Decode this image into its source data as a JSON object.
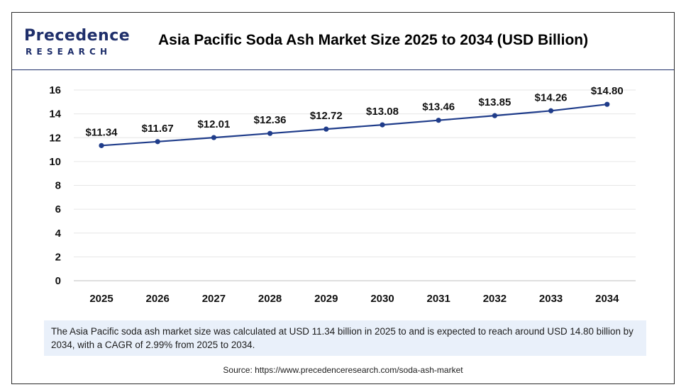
{
  "brand": {
    "name_top": "Precedence",
    "name_bottom": "RESEARCH"
  },
  "colors": {
    "line": "#1f3c8a",
    "brand": "#1f2f6b",
    "footnote_bg": "#e9f0fa"
  },
  "chart_data": {
    "type": "line",
    "title": "Asia Pacific Soda Ash Market Size 2025 to 2034 (USD Billion)",
    "xlabel": "",
    "ylabel": "",
    "categories": [
      "2025",
      "2026",
      "2027",
      "2028",
      "2029",
      "2030",
      "2031",
      "2032",
      "2033",
      "2034"
    ],
    "series": [
      {
        "values": [
          11.34,
          11.67,
          12.01,
          12.36,
          12.72,
          13.08,
          13.46,
          13.85,
          14.26,
          14.8
        ],
        "labels": [
          "$11.34",
          "$11.67",
          "$12.01",
          "$12.36",
          "$12.72",
          "$13.08",
          "$13.46",
          "$13.85",
          "$14.26",
          "$14.80"
        ]
      }
    ],
    "ylim": [
      0,
      16
    ],
    "yticks": [
      "0",
      "2",
      "4",
      "6",
      "8",
      "10",
      "12",
      "14",
      "16"
    ],
    "grid": true,
    "legend": "none"
  },
  "footnote": "The Asia Pacific soda ash market size was calculated at USD 11.34 billion in 2025 to and is expected to reach around USD 14.80 billion by 2034, with a CAGR of 2.99% from 2025 to 2034.",
  "source": "Source: https://www.precedenceresearch.com/soda-ash-market"
}
